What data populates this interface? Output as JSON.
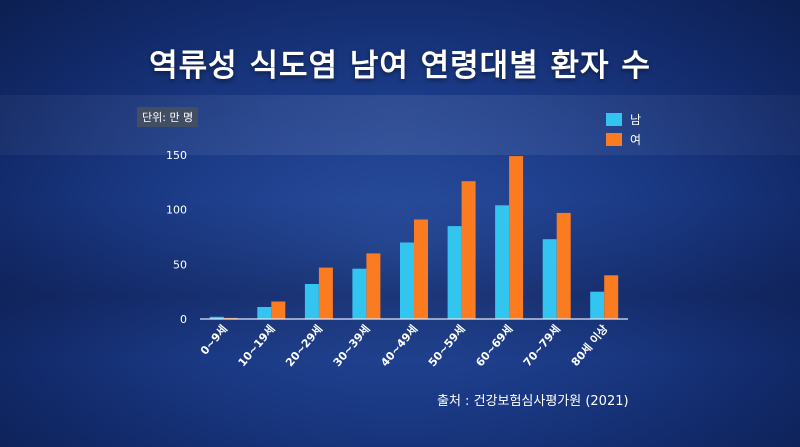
{
  "title": "역류성 식도염 남여 연령대별 환자 수",
  "unit_label": "단위: 만 명",
  "source": "출처 : 건강보험심사평가원 (2021)",
  "colors": {
    "male": "#33c4f0",
    "female": "#fb7b21"
  },
  "chart_data": {
    "type": "bar",
    "categories": [
      "0~9세",
      "10~19세",
      "20~29세",
      "30~39세",
      "40~49세",
      "50~59세",
      "60~69세",
      "70~79세",
      "80세 이상"
    ],
    "series": [
      {
        "name": "남",
        "values": [
          2,
          11,
          32,
          46,
          70,
          85,
          104,
          73,
          25
        ]
      },
      {
        "name": "여",
        "values": [
          1,
          16,
          47,
          60,
          91,
          126,
          149,
          97,
          40
        ]
      }
    ],
    "yticks": [
      0,
      50,
      100,
      150
    ],
    "ylim": [
      0,
      150
    ],
    "legend": "top-right",
    "grid": false
  }
}
